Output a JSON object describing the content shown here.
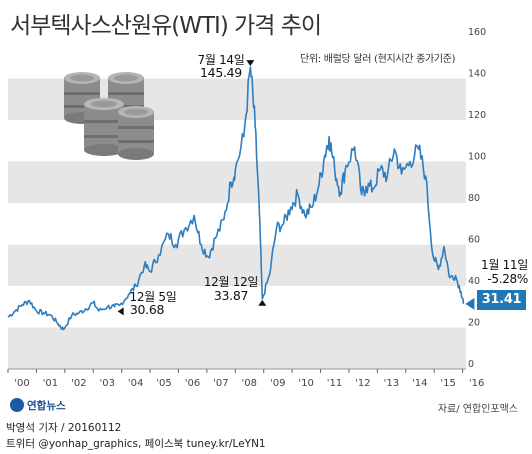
{
  "title": "서부텍사스산원유(WTI) 가격 추이",
  "unit_label": "단위: 배럴당 달러 (현지시간 종가기준)",
  "source": "자료/ 연합인포맥스",
  "byline_1": "박영석 기자 / 20160112",
  "byline_2": "트위터 @yonhap_graphics, 페이스북 tuney.kr/LeYN1",
  "logo_text": "연합뉴스",
  "colors": {
    "line": "#2e7dbf",
    "band": "#e6e6e6",
    "badge": "#1e78b4"
  },
  "annotations": {
    "peak_date": "7월 14일",
    "peak_value": "145.49",
    "low08_date": "12월 12일",
    "low08_value": "33.87",
    "low03_date": "12월 5일",
    "low03_value": "30.68",
    "last_date": "1월 11일",
    "last_change": "-5.28%",
    "last_value": "31.41"
  },
  "chart_data": {
    "type": "line",
    "title": "서부텍사스산원유(WTI) 가격 추이",
    "ylabel": "단위: 배럴당 달러 (현지시간 종가기준)",
    "xlabel": "",
    "ylim": [
      0,
      160
    ],
    "yticks": [
      0,
      20,
      40,
      60,
      80,
      100,
      120,
      140,
      160
    ],
    "xlim": [
      2000.0,
      2016.12
    ],
    "xtick_labels": [
      "'00",
      "'01",
      "'02",
      "'03",
      "'04",
      "'05",
      "'06",
      "'07",
      "'08",
      "'09",
      "'10",
      "'11",
      "'12",
      "'13",
      "'14",
      "'15",
      "'16"
    ],
    "grid": "alternating horizontal bands",
    "series": [
      {
        "x": [
          2000.0,
          2000.25,
          2000.5,
          2000.75,
          2001.0,
          2001.25,
          2001.5,
          2001.75,
          2001.95,
          2002.25,
          2002.5,
          2002.75,
          2003.0,
          2003.2,
          2003.5,
          2003.75,
          2003.93,
          2004.25,
          2004.5,
          2004.8,
          2005.0,
          2005.3,
          2005.65,
          2005.9,
          2006.2,
          2006.55,
          2006.8,
          2007.05,
          2007.3,
          2007.6,
          2007.85,
          2008.0,
          2008.3,
          2008.53,
          2008.7,
          2008.85,
          2008.95,
          2009.2,
          2009.45,
          2009.7,
          2009.95,
          2010.2,
          2010.45,
          2010.7,
          2010.95,
          2011.15,
          2011.3,
          2011.5,
          2011.7,
          2011.9,
          2012.2,
          2012.45,
          2012.6,
          2012.85,
          2013.1,
          2013.35,
          2013.6,
          2013.85,
          2014.15,
          2014.45,
          2014.7,
          2014.95,
          2015.15,
          2015.35,
          2015.55,
          2015.75,
          2015.95,
          2016.03
        ],
        "y": [
          25,
          28,
          31,
          33,
          28,
          27,
          26,
          22,
          19,
          26,
          27,
          29,
          32,
          28,
          30,
          30,
          30.68,
          36,
          40,
          50,
          47,
          55,
          65,
          60,
          67,
          74,
          60,
          54,
          63,
          72,
          90,
          96,
          112,
          145.49,
          117,
          75,
          33.87,
          45,
          68,
          70,
          78,
          84,
          74,
          78,
          89,
          103,
          112,
          96,
          85,
          98,
          107,
          84,
          88,
          87,
          96,
          93,
          106,
          94,
          100,
          106,
          93,
          55,
          48,
          59,
          44,
          45,
          37,
          31.41
        ]
      }
    ]
  }
}
